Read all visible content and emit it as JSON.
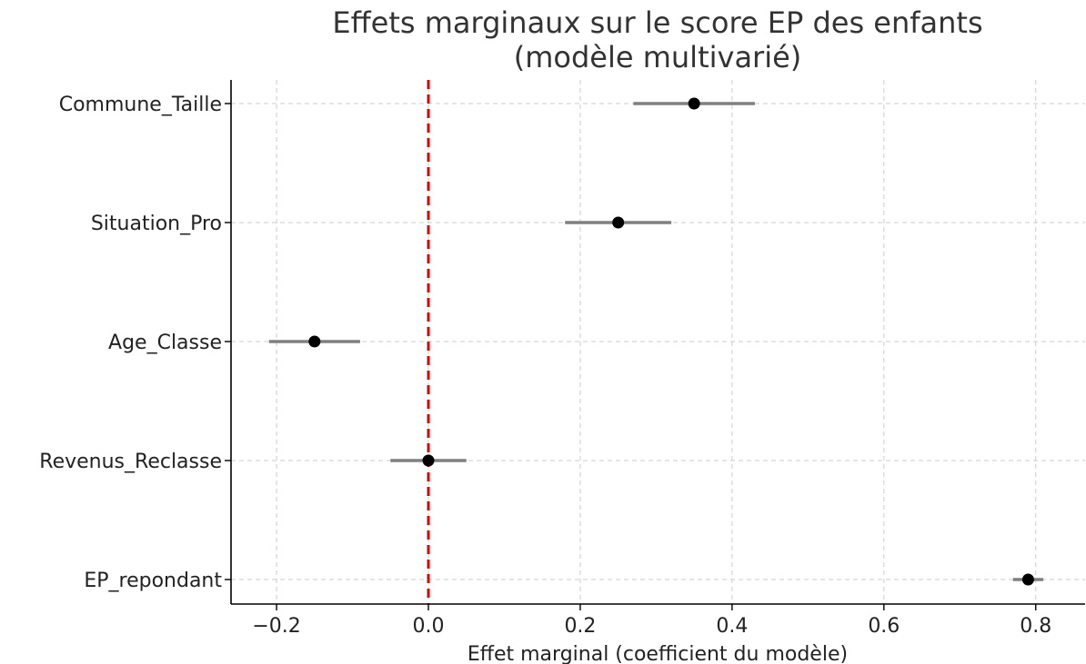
{
  "chart_data": {
    "type": "scatter",
    "title": "Effets marginaux sur le score EP des enfants",
    "subtitle": "(modèle multivarié)",
    "xlabel": "Effet marginal (coefficient du modèle)",
    "ylabel": "",
    "xlim": [
      -0.26,
      0.865
    ],
    "x_ticks": [
      -0.2,
      0.0,
      0.2,
      0.4,
      0.6,
      0.8
    ],
    "x_tick_labels": [
      "−0.2",
      "0.0",
      "0.2",
      "0.4",
      "0.6",
      "0.8"
    ],
    "grid": true,
    "reference_line": {
      "x": 0.0,
      "color": "#e00000",
      "style": "dashed"
    },
    "colors": {
      "point": "#000000",
      "error_bar": "#808080",
      "grid": "#cccccc",
      "axis": "#000000"
    },
    "categories": [
      "Commune_Taille",
      "Situation_Pro",
      "Age_Classe",
      "Revenus_Reclasse",
      "EP_repondant"
    ],
    "series": [
      {
        "points": [
          {
            "label": "Commune_Taille",
            "value": 0.35,
            "ci_low": 0.27,
            "ci_high": 0.43
          },
          {
            "label": "Situation_Pro",
            "value": 0.25,
            "ci_low": 0.18,
            "ci_high": 0.32
          },
          {
            "label": "Age_Classe",
            "value": -0.15,
            "ci_low": -0.21,
            "ci_high": -0.09
          },
          {
            "label": "Revenus_Reclasse",
            "value": 0.0,
            "ci_low": -0.05,
            "ci_high": 0.05
          },
          {
            "label": "EP_repondant",
            "value": 0.79,
            "ci_low": 0.77,
            "ci_high": 0.81
          }
        ]
      }
    ]
  }
}
